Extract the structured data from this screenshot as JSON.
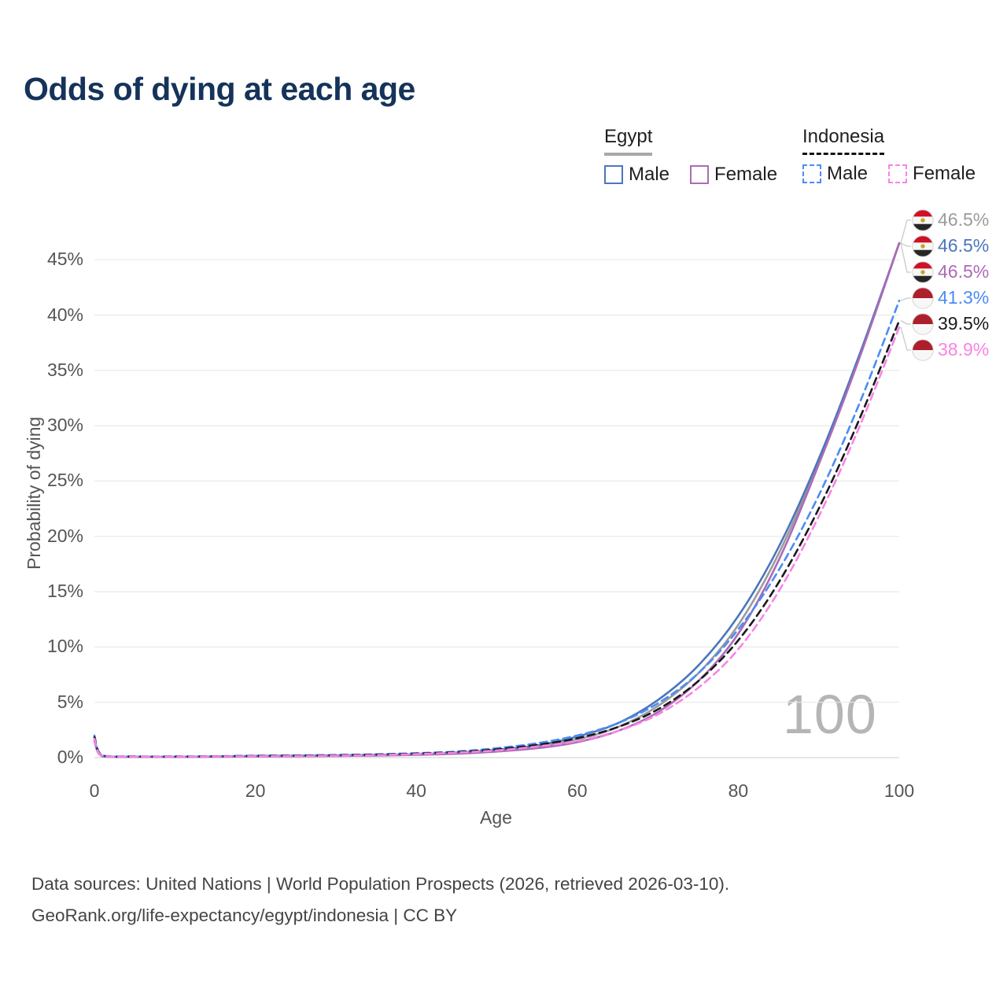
{
  "title": "Odds of dying at each age",
  "watermark_age": "100",
  "legend": {
    "egypt": {
      "label": "Egypt",
      "male_label": "Male",
      "female_label": "Female"
    },
    "indonesia": {
      "label": "Indonesia",
      "male_label": "Male",
      "female_label": "Female"
    }
  },
  "footer": {
    "line1": "Data sources: United Nations | World Population Prospects (2026, retrieved 2026-03-10).",
    "line2": "GeoRank.org/life-expectancy/egypt/indonesia | CC BY"
  },
  "colors": {
    "title": "#15335a",
    "egypt_male": "#4b76bd",
    "egypt_female": "#ac6bb5",
    "egypt_both": "#9b9b9b",
    "indonesia_male": "#4b8cf5",
    "indonesia_female": "#f884e4",
    "indonesia_both": "#1a1a1a",
    "gridline": "#e9e9e9",
    "axis_text": "#555555",
    "egypt_flag_red": "#cf1127",
    "indonesia_flag_red": "#ad1f2c"
  },
  "chart_data": {
    "type": "line",
    "title": "Odds of dying at each age",
    "xlabel": "Age",
    "ylabel": "Probability of dying",
    "xlim": [
      0,
      100
    ],
    "ylim": [
      0,
      48
    ],
    "grid": "horizontal",
    "legend_position": "top-right",
    "hover_age_indicator": "100",
    "x_ticks": [
      {
        "v": 0,
        "label": "0"
      },
      {
        "v": 20,
        "label": "20"
      },
      {
        "v": 40,
        "label": "40"
      },
      {
        "v": 60,
        "label": "60"
      },
      {
        "v": 80,
        "label": "80"
      },
      {
        "v": 100,
        "label": "100"
      }
    ],
    "y_ticks": [
      {
        "v": 0,
        "label": "0%"
      },
      {
        "v": 5,
        "label": "5%"
      },
      {
        "v": 10,
        "label": "10%"
      },
      {
        "v": 15,
        "label": "15%"
      },
      {
        "v": 20,
        "label": "20%"
      },
      {
        "v": 25,
        "label": "25%"
      },
      {
        "v": 30,
        "label": "30%"
      },
      {
        "v": 35,
        "label": "35%"
      },
      {
        "v": 40,
        "label": "40%"
      },
      {
        "v": 45,
        "label": "45%"
      }
    ],
    "ages": [
      0,
      1,
      5,
      10,
      15,
      20,
      25,
      30,
      35,
      40,
      45,
      50,
      55,
      60,
      65,
      70,
      75,
      80,
      85,
      90,
      95,
      100
    ],
    "series": [
      {
        "id": "egypt-both",
        "country": "Egypt",
        "sex": "Both",
        "line": "solid",
        "color": "#9b9b9b",
        "flag": "egypt",
        "end_label": "46.5%",
        "values": [
          1.65,
          0.13,
          0.07,
          0.07,
          0.09,
          0.12,
          0.15,
          0.18,
          0.22,
          0.28,
          0.4,
          0.62,
          0.97,
          1.65,
          2.75,
          4.65,
          7.6,
          12.0,
          18.4,
          26.7,
          36.1,
          46.5
        ]
      },
      {
        "id": "egypt-male",
        "country": "Egypt",
        "sex": "Male",
        "line": "solid",
        "color": "#4b76bd",
        "flag": "egypt",
        "end_label": "46.5%",
        "values": [
          1.8,
          0.15,
          0.08,
          0.08,
          0.1,
          0.15,
          0.18,
          0.2,
          0.25,
          0.3,
          0.45,
          0.7,
          1.1,
          1.9,
          3.1,
          5.2,
          8.3,
          12.8,
          19.0,
          27.0,
          36.3,
          46.5
        ]
      },
      {
        "id": "egypt-female",
        "country": "Egypt",
        "sex": "Female",
        "line": "solid",
        "color": "#ac6bb5",
        "flag": "egypt",
        "end_label": "46.5%",
        "values": [
          1.5,
          0.12,
          0.06,
          0.06,
          0.08,
          0.1,
          0.12,
          0.15,
          0.18,
          0.25,
          0.35,
          0.55,
          0.85,
          1.4,
          2.4,
          4.1,
          6.9,
          11.2,
          17.8,
          26.5,
          36.0,
          46.5
        ]
      },
      {
        "id": "indonesia-male",
        "country": "Indonesia",
        "sex": "Male",
        "line": "dashed",
        "color": "#4b8cf5",
        "flag": "indonesia",
        "end_label": "41.3%",
        "values": [
          2.0,
          0.2,
          0.1,
          0.1,
          0.12,
          0.17,
          0.2,
          0.24,
          0.3,
          0.4,
          0.55,
          0.85,
          1.3,
          2.0,
          3.1,
          4.9,
          7.6,
          11.6,
          16.9,
          23.7,
          31.9,
          41.3
        ]
      },
      {
        "id": "indonesia-both",
        "country": "Indonesia",
        "sex": "Both",
        "line": "dashed",
        "color": "#1a1a1a",
        "flag": "indonesia",
        "end_label": "39.5%",
        "values": [
          1.85,
          0.18,
          0.09,
          0.09,
          0.11,
          0.15,
          0.18,
          0.21,
          0.27,
          0.36,
          0.5,
          0.75,
          1.15,
          1.75,
          2.75,
          4.35,
          6.9,
          10.6,
          15.8,
          22.5,
          30.5,
          39.5
        ]
      },
      {
        "id": "indonesia-female",
        "country": "Indonesia",
        "sex": "Female",
        "line": "dashed",
        "color": "#f884e4",
        "flag": "indonesia",
        "end_label": "38.9%",
        "values": [
          1.7,
          0.16,
          0.08,
          0.08,
          0.1,
          0.12,
          0.15,
          0.18,
          0.23,
          0.32,
          0.45,
          0.65,
          1.0,
          1.5,
          2.4,
          3.9,
          6.3,
          9.8,
          15.0,
          21.8,
          29.8,
          38.9
        ]
      }
    ]
  }
}
